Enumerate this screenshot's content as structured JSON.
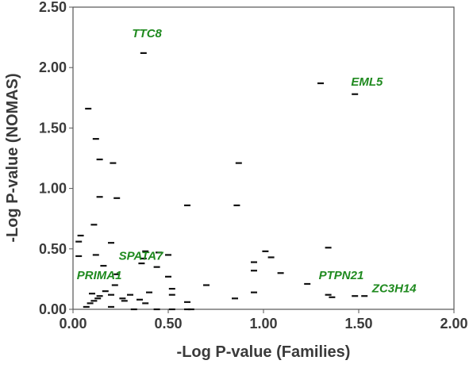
{
  "chart_data": {
    "type": "scatter",
    "title": "",
    "xlabel": "-Log P-value (Families)",
    "ylabel": "-Log P-value (NOMAS)",
    "xlim": [
      0,
      2
    ],
    "ylim": [
      0,
      2.5
    ],
    "xticks": [
      "0.00",
      "0.50",
      "1.00",
      "1.50",
      "2.00"
    ],
    "yticks": [
      "0.00",
      "0.50",
      "1.00",
      "1.50",
      "2.00",
      "2.50"
    ],
    "xtick_values": [
      0,
      0.5,
      1.0,
      1.5,
      2.0
    ],
    "ytick_values": [
      0,
      0.5,
      1.0,
      1.5,
      2.0,
      2.5
    ],
    "marker": "dash",
    "marker_color": "#111111",
    "label_color": "#1f8a1f",
    "grid": false,
    "points": [
      {
        "x": 0.08,
        "y": 1.66
      },
      {
        "x": 0.12,
        "y": 1.41
      },
      {
        "x": 0.14,
        "y": 1.24
      },
      {
        "x": 0.21,
        "y": 1.21
      },
      {
        "x": 0.14,
        "y": 0.93
      },
      {
        "x": 0.23,
        "y": 0.92
      },
      {
        "x": 0.6,
        "y": 0.86
      },
      {
        "x": 0.86,
        "y": 0.86
      },
      {
        "x": 0.87,
        "y": 1.21
      },
      {
        "x": 0.37,
        "y": 2.12
      },
      {
        "x": 1.3,
        "y": 1.87
      },
      {
        "x": 1.48,
        "y": 1.78
      },
      {
        "x": 0.11,
        "y": 0.7
      },
      {
        "x": 0.04,
        "y": 0.61
      },
      {
        "x": 0.03,
        "y": 0.56
      },
      {
        "x": 0.2,
        "y": 0.55
      },
      {
        "x": 0.03,
        "y": 0.44
      },
      {
        "x": 0.12,
        "y": 0.45
      },
      {
        "x": 0.16,
        "y": 0.36
      },
      {
        "x": 0.38,
        "y": 0.48
      },
      {
        "x": 0.45,
        "y": 0.47
      },
      {
        "x": 0.5,
        "y": 0.45
      },
      {
        "x": 0.37,
        "y": 0.42
      },
      {
        "x": 0.36,
        "y": 0.38
      },
      {
        "x": 0.44,
        "y": 0.35
      },
      {
        "x": 0.23,
        "y": 0.29
      },
      {
        "x": 0.22,
        "y": 0.2
      },
      {
        "x": 0.17,
        "y": 0.15
      },
      {
        "x": 0.1,
        "y": 0.13
      },
      {
        "x": 0.14,
        "y": 0.11
      },
      {
        "x": 0.13,
        "y": 0.09
      },
      {
        "x": 0.11,
        "y": 0.07
      },
      {
        "x": 0.09,
        "y": 0.05
      },
      {
        "x": 0.07,
        "y": 0.02
      },
      {
        "x": 0.2,
        "y": 0.02
      },
      {
        "x": 0.26,
        "y": 0.09
      },
      {
        "x": 0.27,
        "y": 0.07
      },
      {
        "x": 0.35,
        "y": 0.08
      },
      {
        "x": 0.38,
        "y": 0.05
      },
      {
        "x": 0.2,
        "y": 0.12
      },
      {
        "x": 0.3,
        "y": 0.12
      },
      {
        "x": 0.4,
        "y": 0.14
      },
      {
        "x": 0.44,
        "y": 0.0
      },
      {
        "x": 0.5,
        "y": 0.27
      },
      {
        "x": 0.52,
        "y": 0.17
      },
      {
        "x": 0.52,
        "y": 0.12
      },
      {
        "x": 0.52,
        "y": 0.0
      },
      {
        "x": 0.6,
        "y": 0.06
      },
      {
        "x": 0.6,
        "y": 0.0
      },
      {
        "x": 0.7,
        "y": 0.2
      },
      {
        "x": 0.85,
        "y": 0.09
      },
      {
        "x": 0.95,
        "y": 0.39
      },
      {
        "x": 0.95,
        "y": 0.32
      },
      {
        "x": 0.95,
        "y": 0.14
      },
      {
        "x": 1.01,
        "y": 0.48
      },
      {
        "x": 1.04,
        "y": 0.43
      },
      {
        "x": 1.09,
        "y": 0.3
      },
      {
        "x": 1.23,
        "y": 0.21
      },
      {
        "x": 1.34,
        "y": 0.51
      },
      {
        "x": 1.34,
        "y": 0.12
      },
      {
        "x": 1.36,
        "y": 0.1
      },
      {
        "x": 1.48,
        "y": 0.11
      },
      {
        "x": 1.53,
        "y": 0.11
      },
      {
        "x": 0.62,
        "y": 0.0
      },
      {
        "x": 0.32,
        "y": 0.0
      }
    ],
    "annotations": [
      {
        "text": "TTC8",
        "x": 0.31,
        "y": 2.25
      },
      {
        "text": "EML5",
        "x": 1.46,
        "y": 1.85
      },
      {
        "text": "SPATA7",
        "x": 0.24,
        "y": 0.41
      },
      {
        "text": "PRIMA1",
        "x": 0.02,
        "y": 0.25
      },
      {
        "text": "PTPN21",
        "x": 1.29,
        "y": 0.25
      },
      {
        "text": "ZC3H14",
        "x": 1.57,
        "y": 0.14
      }
    ]
  }
}
